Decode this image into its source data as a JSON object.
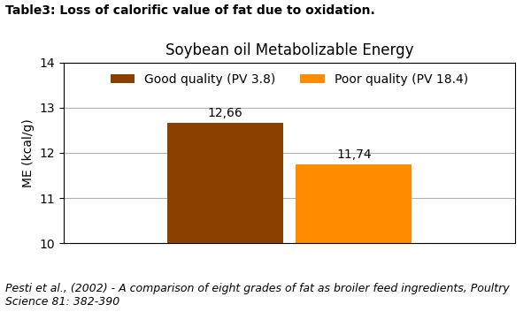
{
  "chart_data": {
    "type": "bar",
    "title": "Soybean oil Metabolizable Energy",
    "annotations": [
      "Table3: Loss of calorific value of fat due to oxidation.",
      "Pesti et al., (2002) - A comparison of eight grades of fat as broiler feed ingredients, Poultry Science 81: 382-390"
    ],
    "ylabel": "ME (kcal/g)",
    "categories": [
      null
    ],
    "series": [
      {
        "name": "Good quality (PV 3.8)",
        "color": "#8B4000",
        "values": [
          12.66
        ],
        "value_labels": [
          "12,66"
        ]
      },
      {
        "name": "Poor quality (PV 18.4)",
        "color": "#FF8C00",
        "values": [
          11.74
        ],
        "value_labels": [
          "11,74"
        ]
      }
    ],
    "ylim": [
      10,
      14
    ],
    "yticks": [
      10,
      11,
      12,
      13,
      14
    ],
    "grid": true,
    "legend": "upper center",
    "data_labels": true,
    "tick_labels": "y"
  }
}
